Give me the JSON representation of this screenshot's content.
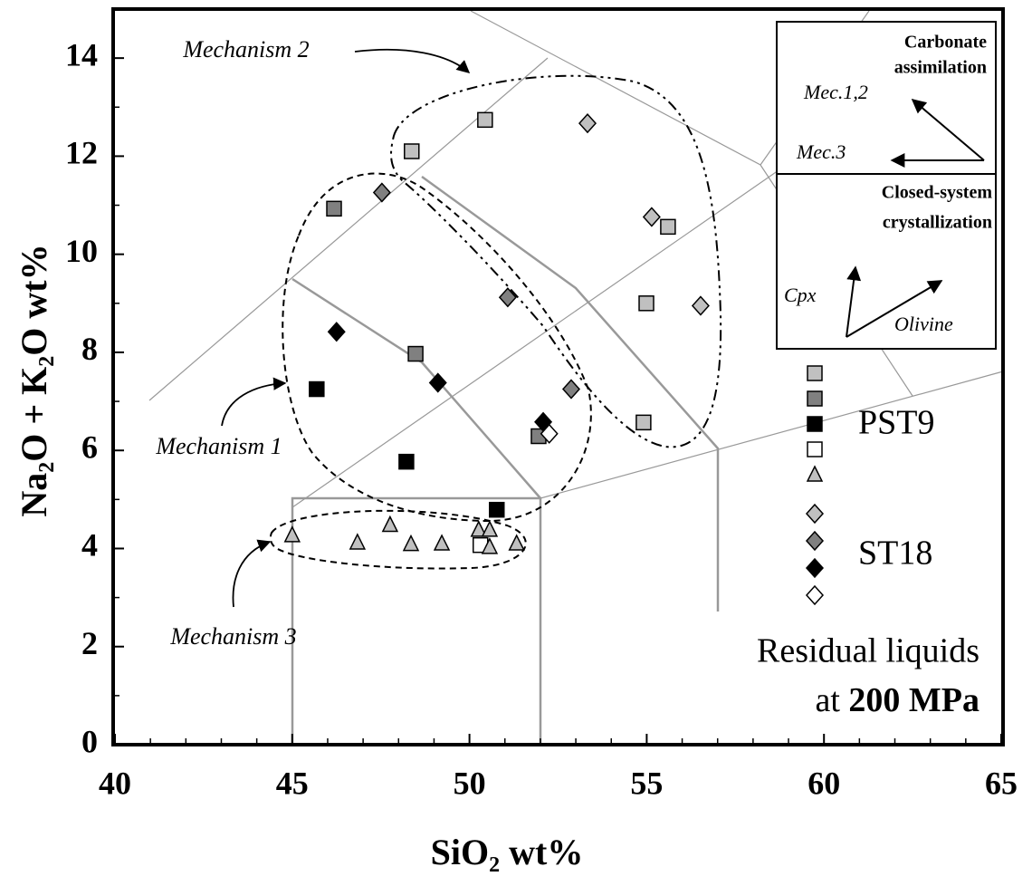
{
  "chart_data": {
    "type": "scatter",
    "x_label": "SiO₂ wt%",
    "y_label": "Na₂O + K₂O wt%",
    "xlim": [
      40,
      65
    ],
    "ylim": [
      0,
      15
    ],
    "xticks": [
      40,
      45,
      50,
      55,
      60,
      65
    ],
    "yticks": [
      0,
      2,
      4,
      6,
      8,
      10,
      12,
      14
    ],
    "xminorticks": [
      41,
      42,
      43,
      44,
      46,
      47,
      48,
      49,
      51,
      52,
      53,
      54,
      56,
      57,
      58,
      59,
      61,
      62,
      63,
      64
    ],
    "yminorticks": [
      1,
      3,
      5,
      7,
      9,
      11,
      13
    ],
    "series": [
      {
        "marker": "square",
        "color": "#c0c0c0",
        "x": [
          48.37,
          50.44,
          55.6,
          54.99,
          54.91
        ],
        "y": [
          12.1,
          12.74,
          10.56,
          9.0,
          6.57
        ]
      },
      {
        "marker": "square",
        "color": "#808080",
        "x": [
          46.18,
          48.48,
          51.95
        ],
        "y": [
          10.93,
          7.97,
          6.29
        ]
      },
      {
        "marker": "square",
        "color": "#000000",
        "x": [
          45.69,
          48.22,
          50.77
        ],
        "y": [
          7.25,
          5.77,
          4.79
        ]
      },
      {
        "marker": "square",
        "color": "#ffffff",
        "x": [
          50.31
        ],
        "y": [
          4.07
        ]
      },
      {
        "marker": "triangle",
        "color": "#c0c0c0",
        "x": [
          45.0,
          46.84,
          47.76,
          48.35,
          49.22,
          50.26,
          50.57,
          50.57,
          51.33
        ],
        "y": [
          4.27,
          4.12,
          4.48,
          4.09,
          4.1,
          4.38,
          4.38,
          4.03,
          4.1
        ]
      },
      {
        "marker": "diamond",
        "color": "#c0c0c0",
        "x": [
          53.33,
          55.14,
          56.52
        ],
        "y": [
          12.67,
          10.76,
          8.95
        ]
      },
      {
        "marker": "diamond",
        "color": "#808080",
        "x": [
          47.53,
          51.08,
          52.87
        ],
        "y": [
          11.26,
          9.12,
          7.25
        ]
      },
      {
        "marker": "diamond",
        "color": "#000000",
        "x": [
          46.25,
          49.11,
          52.08
        ],
        "y": [
          8.42,
          7.38,
          6.58
        ]
      },
      {
        "marker": "diamond",
        "color": "#ffffff",
        "x": [
          52.25
        ],
        "y": [
          6.34
        ]
      }
    ],
    "groups": [
      {
        "name": "PST9",
        "series": [
          0,
          1,
          2,
          3,
          4
        ]
      },
      {
        "name": "ST18",
        "series": [
          5,
          6,
          7,
          8
        ]
      }
    ],
    "note": [
      "Residual liquids",
      "at",
      "200 MPa"
    ],
    "annotations": [
      "Mechanism 2",
      "Mechanism 1",
      "Mechanism 3"
    ],
    "inset": {
      "top_title": [
        "Carbonate",
        "assimilation"
      ],
      "top_labels": [
        "Mec.1,2",
        "Mec.3"
      ],
      "bottom_title": [
        "Closed-system",
        "crystallization"
      ],
      "bottom_labels": [
        "Cpx",
        "Olivine"
      ]
    }
  }
}
